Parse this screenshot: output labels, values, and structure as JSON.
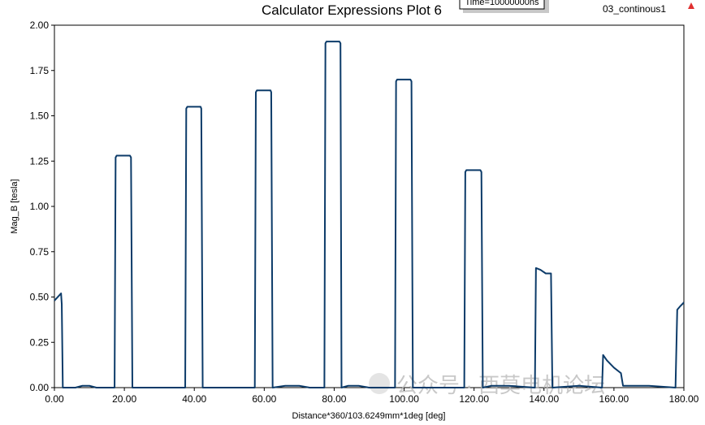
{
  "chart_data": {
    "type": "line",
    "title": "Calculator Expressions Plot 6",
    "annotation": "Time=10000000ns",
    "watermark": "公众号 · 西莫电机论坛",
    "xlabel": "Distance*360/103.6249mm*1deg [deg]",
    "ylabel": "Mag_B [tesla]",
    "xlim": [
      0,
      180
    ],
    "ylim": [
      0,
      2
    ],
    "xticks": [
      {
        "value": 0,
        "label": "0.00"
      },
      {
        "value": 20,
        "label": "20.00"
      },
      {
        "value": 40,
        "label": "40.00"
      },
      {
        "value": 60,
        "label": "60.00"
      },
      {
        "value": 80,
        "label": "80.00"
      },
      {
        "value": 100,
        "label": "100.00"
      },
      {
        "value": 120,
        "label": "120.00"
      },
      {
        "value": 140,
        "label": "140.00"
      },
      {
        "value": 160,
        "label": "160.00"
      },
      {
        "value": 180,
        "label": "180.00"
      }
    ],
    "yticks": [
      {
        "value": 0,
        "label": "0.00"
      },
      {
        "value": 0.25,
        "label": "0.25"
      },
      {
        "value": 0.5,
        "label": "0.50"
      },
      {
        "value": 0.75,
        "label": "0.75"
      },
      {
        "value": 1,
        "label": "1.00"
      },
      {
        "value": 1.25,
        "label": "1.25"
      },
      {
        "value": 1.5,
        "label": "1.50"
      },
      {
        "value": 1.75,
        "label": "1.75"
      },
      {
        "value": 2,
        "label": "2.00"
      }
    ],
    "grid": false,
    "legend": "top-right",
    "x": [
      0,
      1.9,
      2.1,
      2.4,
      6,
      8,
      10,
      12,
      17.2,
      17.5,
      17.8,
      21.6,
      21.9,
      22.3,
      37.4,
      37.7,
      38,
      41.8,
      42.0,
      42.4,
      57.3,
      57.6,
      57.9,
      61.8,
      62.0,
      62.4,
      66,
      70,
      73,
      77.2,
      77.5,
      77.8,
      81.5,
      81.8,
      82.1,
      84,
      87,
      90,
      97.4,
      97.7,
      98,
      101.8,
      102.1,
      102.5,
      117.2,
      117.5,
      117.8,
      121.8,
      122.1,
      122.5,
      125,
      130,
      137.4,
      137.7,
      139,
      140.5,
      142.0,
      142.4,
      150,
      156.6,
      156.9,
      158,
      160,
      162.0,
      162.6,
      170,
      177.6,
      178.1,
      179,
      180
    ],
    "series": [
      {
        "name": "03_continous1",
        "color": "#0c3b69",
        "values": [
          0.48,
          0.52,
          0.46,
          0,
          0,
          0.01,
          0.01,
          0,
          0,
          1.27,
          1.28,
          1.28,
          1.27,
          0,
          0,
          1.54,
          1.55,
          1.55,
          1.54,
          0,
          0,
          1.63,
          1.64,
          1.64,
          1.63,
          0,
          0.01,
          0.01,
          0,
          0,
          1.9,
          1.91,
          1.91,
          1.9,
          0,
          0.01,
          0.01,
          0,
          0,
          1.69,
          1.7,
          1.7,
          1.69,
          0,
          0,
          1.19,
          1.2,
          1.2,
          1.19,
          0,
          0.01,
          0.01,
          0,
          0.66,
          0.65,
          0.63,
          0.63,
          0,
          0.01,
          0,
          0.18,
          0.15,
          0.11,
          0.08,
          0.01,
          0.01,
          0,
          0.43,
          0.45,
          0.47
        ]
      }
    ]
  }
}
